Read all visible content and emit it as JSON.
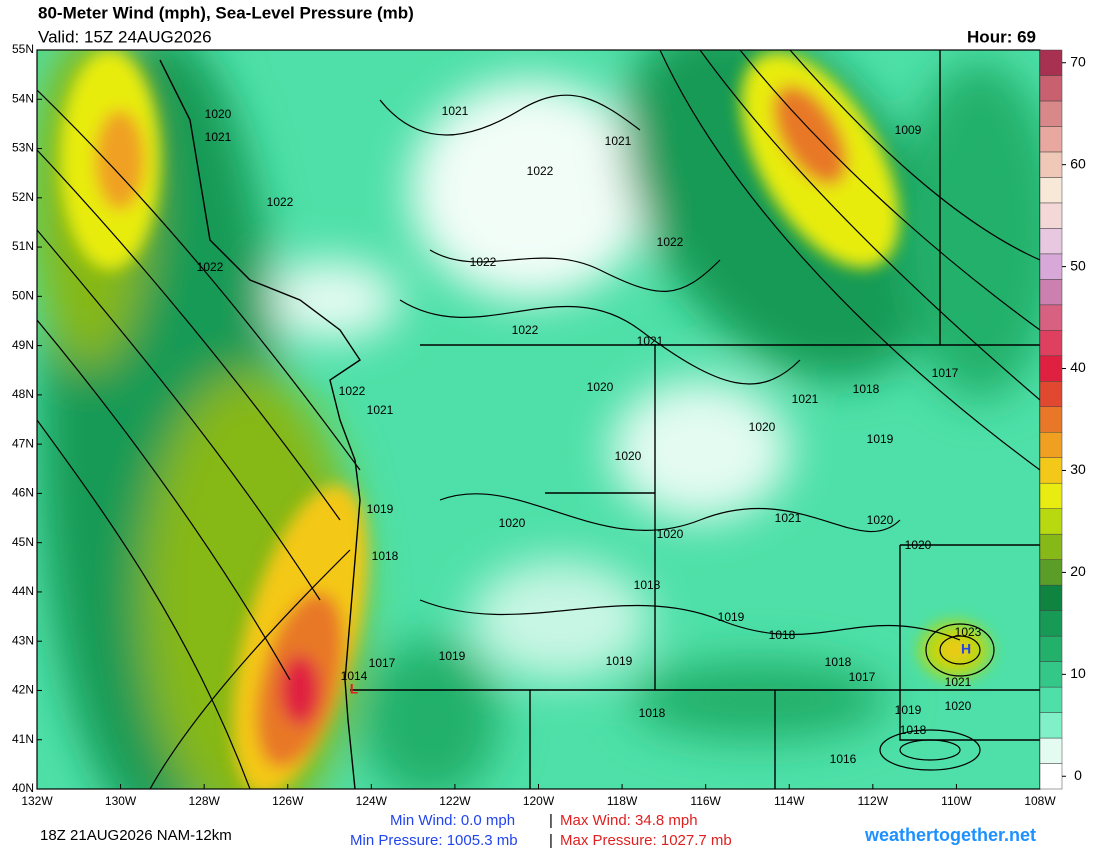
{
  "header": {
    "title": "80-Meter Wind (mph), Sea-Level Pressure (mb)",
    "valid": "Valid: 15Z 24AUG2026",
    "hour": "Hour: 69"
  },
  "map": {
    "lat_labels": [
      "55N",
      "54N",
      "53N",
      "52N",
      "51N",
      "50N",
      "49N",
      "48N",
      "47N",
      "46N",
      "45N",
      "44N",
      "43N",
      "42N",
      "41N",
      "40N"
    ],
    "lon_labels": [
      "132W",
      "130W",
      "128W",
      "126W",
      "124W",
      "122W",
      "120W",
      "118W",
      "116W",
      "114W",
      "112W",
      "110W",
      "108W"
    ],
    "contour_labels": [
      "1020",
      "1021",
      "1022",
      "1021",
      "1022",
      "1021",
      "1022",
      "1022",
      "1022",
      "1021",
      "1020",
      "1009",
      "1018",
      "1017",
      "1021",
      "1020",
      "1019",
      "1022",
      "1021",
      "1020",
      "1019",
      "1020",
      "1020",
      "1021",
      "1020",
      "1020",
      "1018",
      "1018",
      "1019",
      "1018",
      "1017",
      "1019",
      "1019",
      "1018",
      "1017",
      "1021",
      "1020",
      "1019",
      "1018",
      "1018",
      "1016",
      "1014",
      "1023",
      "1022"
    ],
    "highs_lows": [
      "H",
      "L"
    ]
  },
  "colorbar": {
    "ticks": [
      0,
      10,
      20,
      30,
      40,
      50,
      60,
      70
    ],
    "range": [
      0,
      72.5
    ],
    "step": 2.5,
    "colors": [
      "#ffffff",
      "#e4fbf2",
      "#7ff0c8",
      "#4ee0a8",
      "#34c888",
      "#22b06a",
      "#169a55",
      "#0e8440",
      "#5a9e28",
      "#86b818",
      "#b8d810",
      "#e8ec10",
      "#f4c818",
      "#f0a020",
      "#e87828",
      "#e04830",
      "#e02040",
      "#e04060",
      "#d86080",
      "#cc80b0",
      "#d8a8d8",
      "#e8c8e0",
      "#f4d8d8",
      "#f8e8d8",
      "#f0c8b8",
      "#e8a8a0",
      "#d88888",
      "#c86070",
      "#a83050"
    ]
  },
  "footer": {
    "run": "18Z 21AUG2026 NAM-12km",
    "min_wind": "Min Wind:  0.0 mph",
    "separator": "|",
    "max_wind": "Max Wind: 34.8 mph",
    "min_pressure": "Min Pressure: 1005.3 mb",
    "max_pressure": "Max Pressure: 1027.7 mb",
    "site": "weathertogether.net"
  }
}
